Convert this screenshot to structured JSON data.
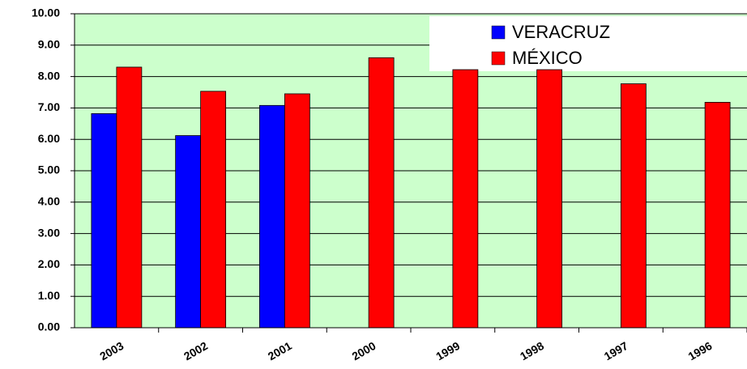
{
  "chart_data": {
    "type": "bar",
    "categories": [
      "2003",
      "2002",
      "2001",
      "2000",
      "1999",
      "1998",
      "1997",
      "1996"
    ],
    "series": [
      {
        "name": "VERACRUZ",
        "color": "#0000ff",
        "values": [
          6.82,
          6.12,
          7.08,
          null,
          null,
          null,
          null,
          null
        ]
      },
      {
        "name": "MÉXICO",
        "color": "#ff0000",
        "values": [
          8.3,
          7.53,
          7.45,
          8.6,
          8.22,
          8.22,
          7.77,
          7.18
        ]
      }
    ],
    "ylim": [
      0,
      10
    ],
    "yticks": [
      {
        "value": 0,
        "label": "0.00"
      },
      {
        "value": 1,
        "label": "1.00"
      },
      {
        "value": 2,
        "label": "2.00"
      },
      {
        "value": 3,
        "label": "3.00"
      },
      {
        "value": 4,
        "label": "4.00"
      },
      {
        "value": 5,
        "label": "5.00"
      },
      {
        "value": 6,
        "label": "6.00"
      },
      {
        "value": 7,
        "label": "7.00"
      },
      {
        "value": 8,
        "label": "8.00"
      },
      {
        "value": 9,
        "label": "9.00"
      },
      {
        "value": 10,
        "label": "10.00"
      }
    ],
    "grid": true,
    "background": "#ccffcc",
    "legend": "top-right"
  }
}
